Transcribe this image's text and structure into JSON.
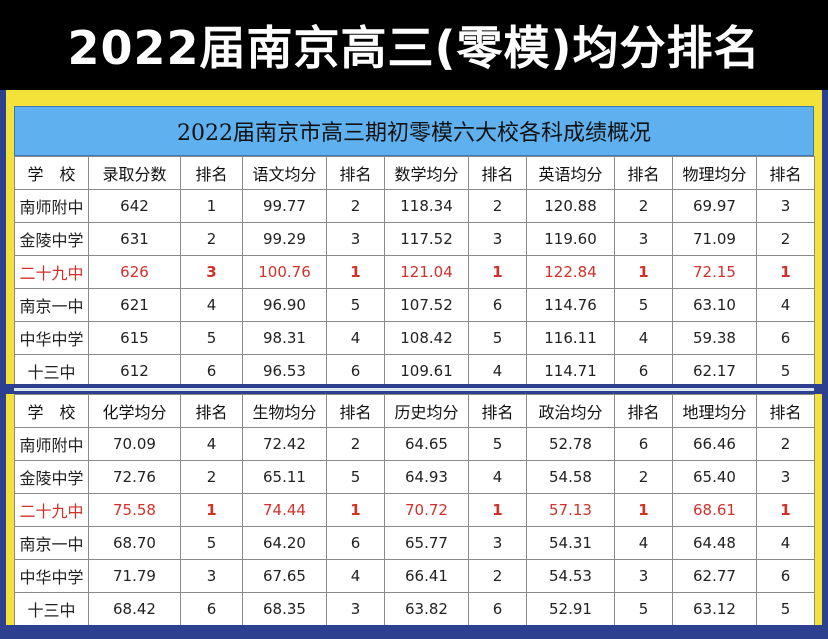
{
  "title": "2022届南京高三(零模)均分排名",
  "table_caption": "2022届南京市高三期初零模六大校各科成绩概况",
  "highlight_color": "#d3302a",
  "table1": {
    "headers": [
      "学　校",
      "录取分数",
      "排名",
      "语文均分",
      "排名",
      "数学均分",
      "排名",
      "英语均分",
      "排名",
      "物理均分",
      "排名"
    ],
    "rows": [
      [
        "南师附中",
        "642",
        "1",
        "99.77",
        "2",
        "118.34",
        "2",
        "120.88",
        "2",
        "69.97",
        "3"
      ],
      [
        "金陵中学",
        "631",
        "2",
        "99.29",
        "3",
        "117.52",
        "3",
        "119.60",
        "3",
        "71.09",
        "2"
      ],
      [
        "二十九中",
        "626",
        "3",
        "100.76",
        "1",
        "121.04",
        "1",
        "122.84",
        "1",
        "72.15",
        "1"
      ],
      [
        "南京一中",
        "621",
        "4",
        "96.90",
        "5",
        "107.52",
        "6",
        "114.76",
        "5",
        "63.10",
        "4"
      ],
      [
        "中华中学",
        "615",
        "5",
        "98.31",
        "4",
        "108.42",
        "5",
        "116.11",
        "4",
        "59.38",
        "6"
      ],
      [
        "十三中",
        "612",
        "6",
        "96.53",
        "6",
        "109.61",
        "4",
        "114.71",
        "6",
        "62.17",
        "5"
      ]
    ]
  },
  "table2": {
    "headers": [
      "学　校",
      "化学均分",
      "排名",
      "生物均分",
      "排名",
      "历史均分",
      "排名",
      "政治均分",
      "排名",
      "地理均分",
      "排名"
    ],
    "rows": [
      [
        "南师附中",
        "70.09",
        "4",
        "72.42",
        "2",
        "64.65",
        "5",
        "52.78",
        "6",
        "66.46",
        "2"
      ],
      [
        "金陵中学",
        "72.76",
        "2",
        "65.11",
        "5",
        "64.93",
        "4",
        "54.58",
        "2",
        "65.40",
        "3"
      ],
      [
        "二十九中",
        "75.58",
        "1",
        "74.44",
        "1",
        "70.72",
        "1",
        "57.13",
        "1",
        "68.61",
        "1"
      ],
      [
        "南京一中",
        "68.70",
        "5",
        "64.20",
        "6",
        "65.77",
        "3",
        "54.31",
        "4",
        "64.48",
        "4"
      ],
      [
        "中华中学",
        "71.79",
        "3",
        "67.65",
        "4",
        "66.41",
        "2",
        "54.53",
        "3",
        "62.77",
        "6"
      ],
      [
        "十三中",
        "68.42",
        "6",
        "68.35",
        "3",
        "63.82",
        "6",
        "52.91",
        "5",
        "63.12",
        "5"
      ]
    ]
  }
}
